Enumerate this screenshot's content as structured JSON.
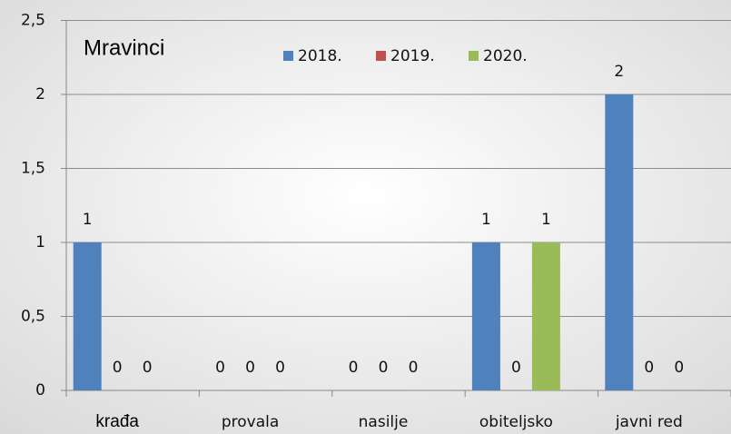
{
  "chart_data": {
    "type": "bar",
    "title": "Mravinci",
    "categories": [
      "krađa",
      "provala",
      "nasilje",
      "obiteljsko",
      "javni red"
    ],
    "series": [
      {
        "name": "2018.",
        "color": "#4f81bd",
        "values": [
          1,
          0,
          0,
          1,
          2
        ]
      },
      {
        "name": "2019.",
        "color": "#c0504d",
        "values": [
          0,
          0,
          0,
          0,
          0
        ]
      },
      {
        "name": "2020.",
        "color": "#9bbb59",
        "values": [
          0,
          0,
          0,
          1,
          0
        ]
      }
    ],
    "ylim": [
      0,
      2.5
    ],
    "yticks": [
      0,
      {
        "value": 0.5,
        "label": "0,5"
      },
      1,
      {
        "value": 1.5,
        "label": "1,5"
      },
      2,
      {
        "value": 2.5,
        "label": "2,5"
      }
    ],
    "grid": true,
    "legend": "top"
  }
}
